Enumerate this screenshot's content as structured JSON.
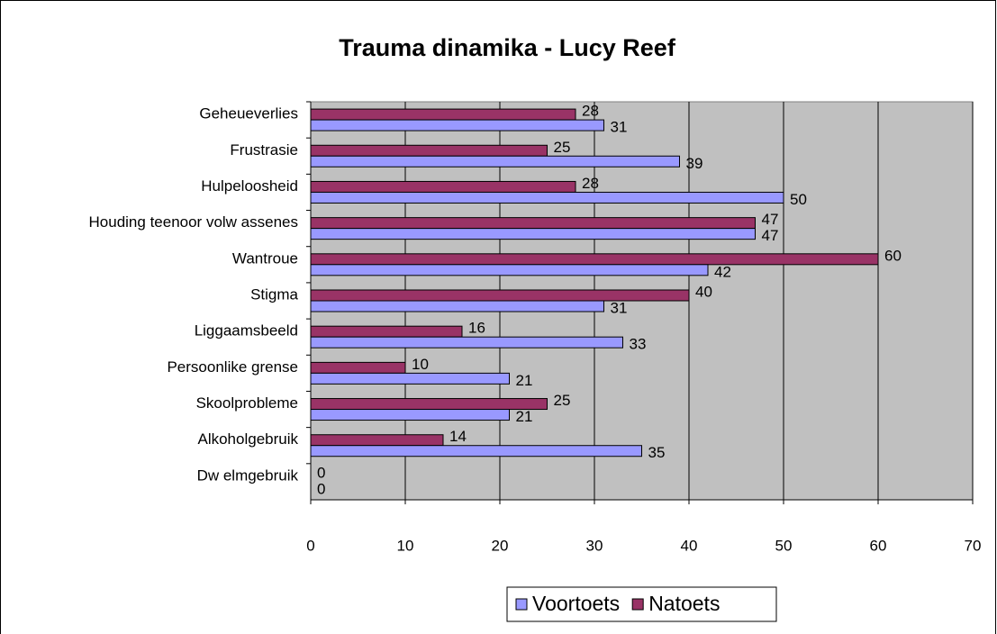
{
  "chart_data": {
    "type": "hbar",
    "title": "Trauma dinamika - Lucy Reef",
    "categories": [
      "Geheueverlies",
      "Frustrasie",
      "Hulpeloosheid",
      "Houding teenoor volw assenes",
      "Wantroue",
      "Stigma",
      "Liggaamsbeeld",
      "Persoonlike grense",
      "Skoolprobleme",
      "Alkoholgebruik",
      "Dw elmgebruik"
    ],
    "series": [
      {
        "name": "Voortoets",
        "color": "#9999ff",
        "values": [
          31,
          39,
          50,
          47,
          42,
          31,
          33,
          21,
          21,
          35,
          0
        ]
      },
      {
        "name": "Natoets",
        "color": "#993366",
        "values": [
          28,
          25,
          28,
          47,
          60,
          40,
          16,
          10,
          25,
          14,
          0
        ]
      }
    ],
    "xlim": [
      0,
      70
    ],
    "xticks": [
      0,
      10,
      20,
      30,
      40,
      50,
      60,
      70
    ],
    "grid": true,
    "legend": "bottom"
  }
}
